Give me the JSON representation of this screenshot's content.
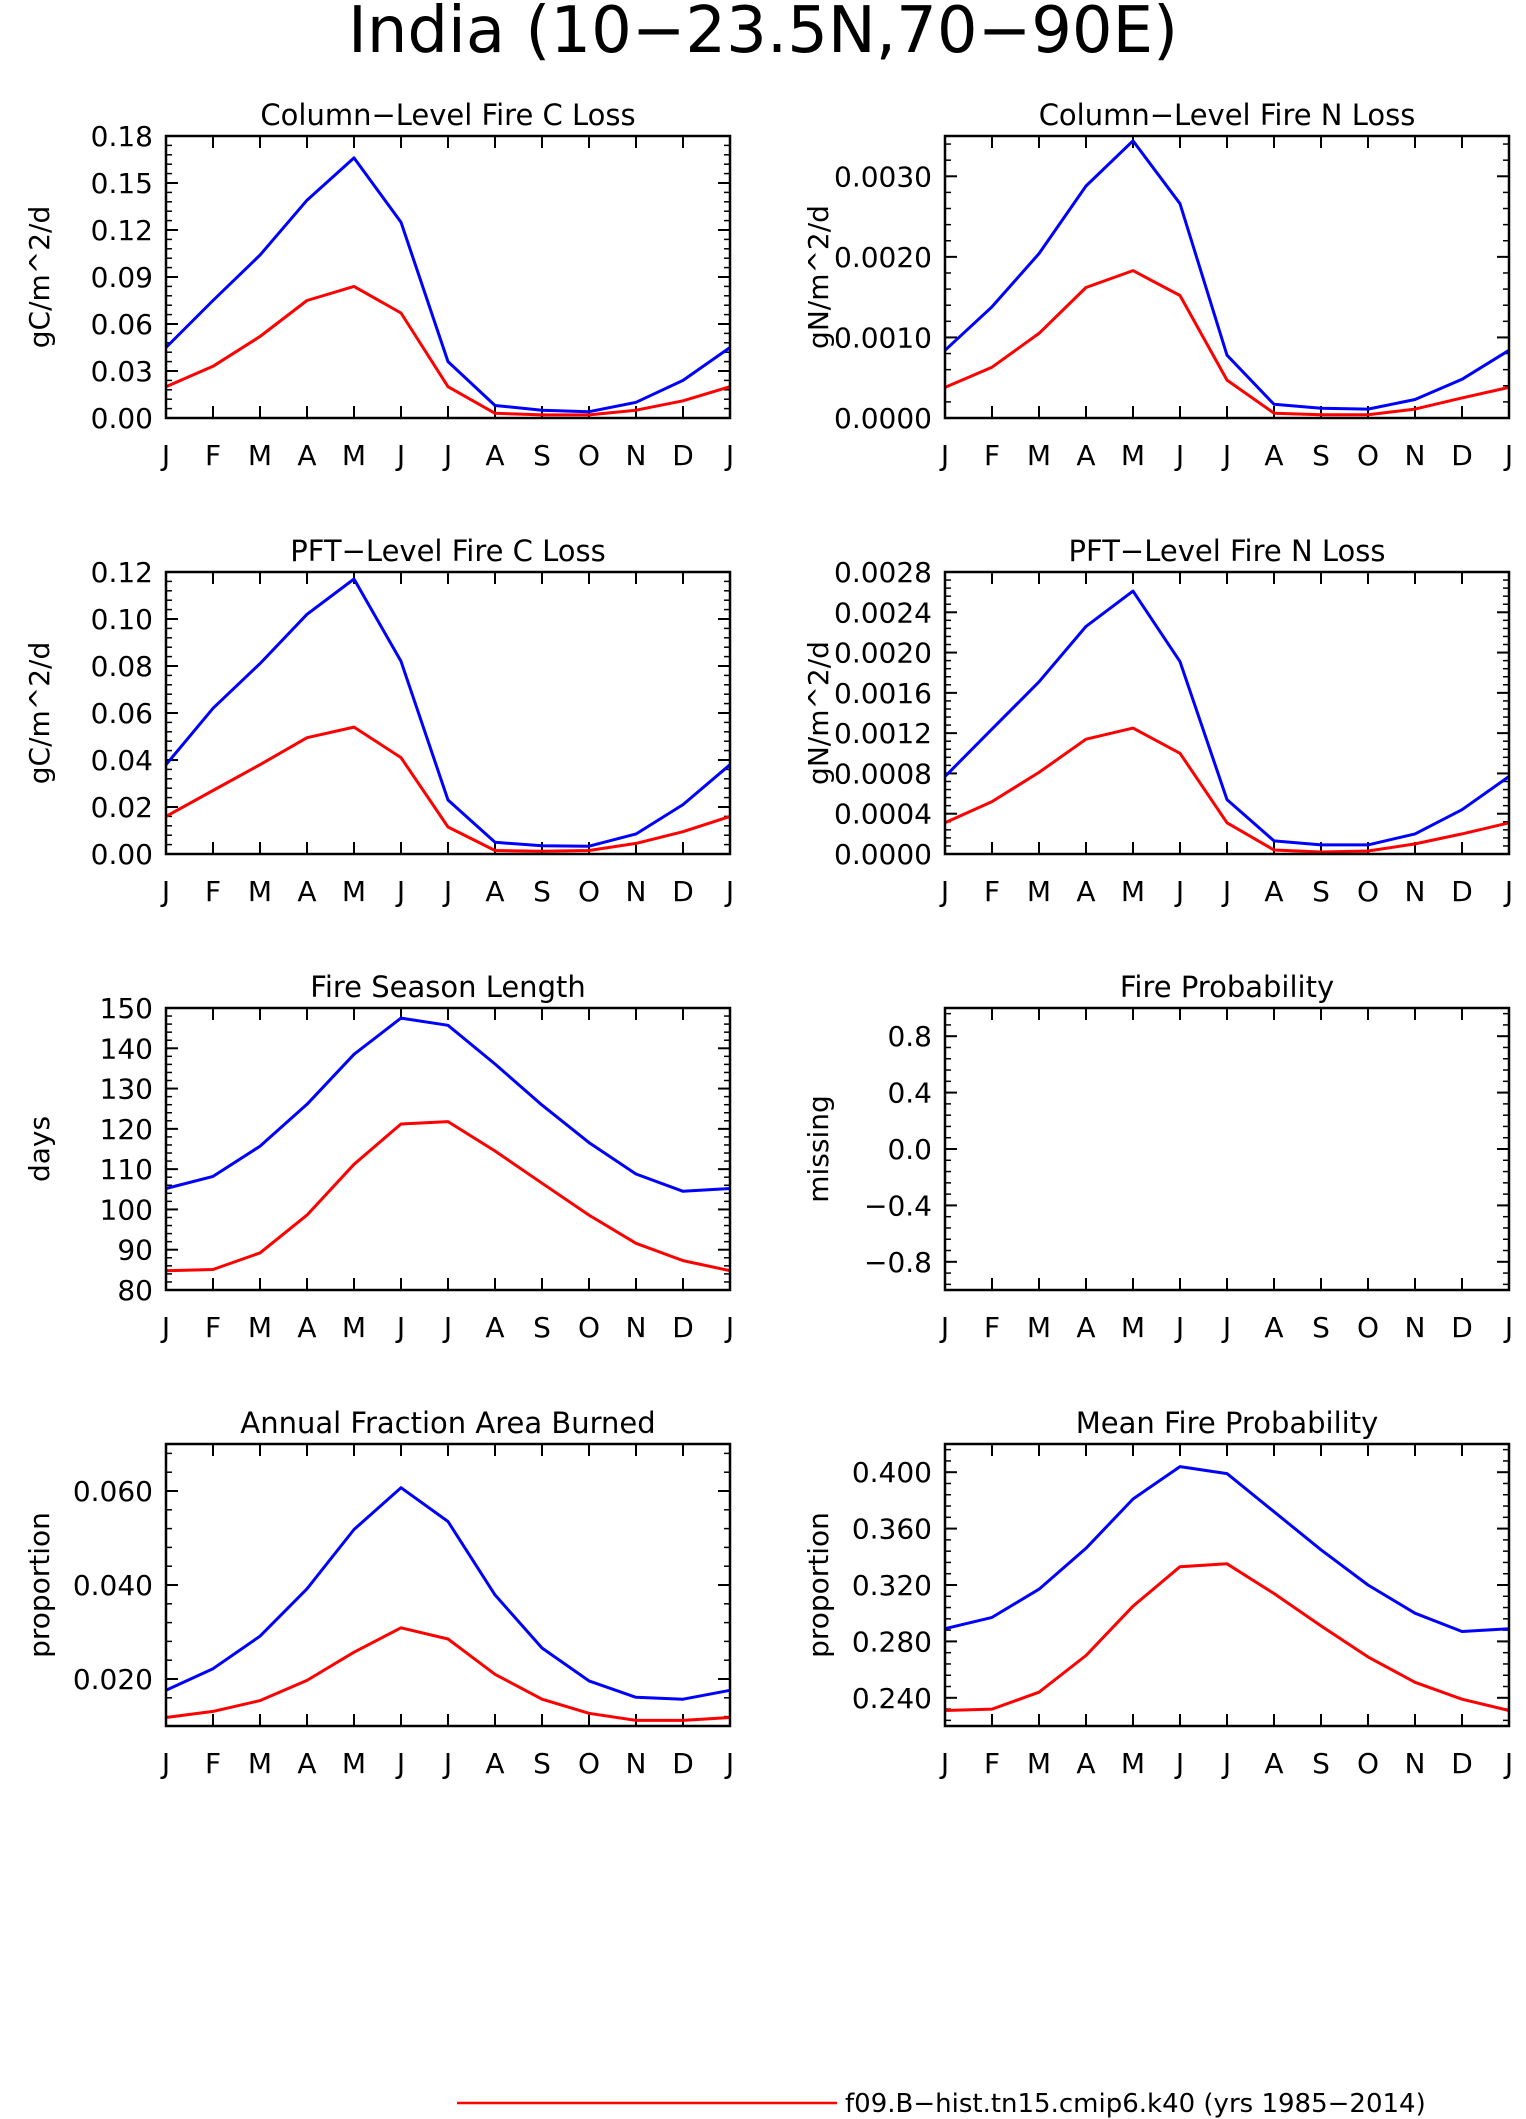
{
  "figure": {
    "title": "India (10−23.5N,70−90E)",
    "legend": [
      {
        "label": "f09.B−hist.tn15.cmip6.k40 (yrs 1985−2014)",
        "color": "#ff0000"
      }
    ],
    "colors": {
      "series_a": "#0000ff",
      "series_b": "#ff0000"
    }
  },
  "chart_data": [
    {
      "type": "line",
      "title": "Column−Level Fire C Loss",
      "ylabel": "gC/m^2/d",
      "x": [
        "J",
        "F",
        "M",
        "A",
        "M",
        "J",
        "J",
        "A",
        "S",
        "O",
        "N",
        "D",
        "J"
      ],
      "ylim": [
        0,
        0.18
      ],
      "yticks": [
        "0.00",
        "0.03",
        "0.06",
        "0.09",
        "0.12",
        "0.15",
        "0.18"
      ],
      "series": [
        {
          "color": "#0000ff",
          "values": [
            0.045,
            0.075,
            0.104,
            0.139,
            0.166,
            0.125,
            0.036,
            0.008,
            0.005,
            0.004,
            0.01,
            0.024,
            0.045
          ]
        },
        {
          "color": "#ff0000",
          "values": [
            0.02,
            0.033,
            0.052,
            0.075,
            0.084,
            0.067,
            0.02,
            0.003,
            0.002,
            0.002,
            0.005,
            0.011,
            0.02
          ]
        }
      ]
    },
    {
      "type": "line",
      "title": "Column−Level Fire N Loss",
      "ylabel": "gN/m^2/d",
      "x": [
        "J",
        "F",
        "M",
        "A",
        "M",
        "J",
        "J",
        "A",
        "S",
        "O",
        "N",
        "D",
        "J"
      ],
      "ylim": [
        0,
        0.0035
      ],
      "yticks": [
        "0.0000",
        "0.0010",
        "0.0020",
        "0.0030"
      ],
      "series": [
        {
          "color": "#0000ff",
          "values": [
            0.00084,
            0.00138,
            0.00204,
            0.00288,
            0.00344,
            0.00266,
            0.00078,
            0.00017,
            0.00012,
            0.00011,
            0.00023,
            0.00048,
            0.00084
          ]
        },
        {
          "color": "#ff0000",
          "values": [
            0.00038,
            0.00063,
            0.00105,
            0.00162,
            0.00183,
            0.00152,
            0.00047,
            6e-05,
            4e-05,
            4e-05,
            0.00011,
            0.00025,
            0.00038
          ]
        }
      ]
    },
    {
      "type": "line",
      "title": "PFT−Level Fire C Loss",
      "ylabel": "gC/m^2/d",
      "x": [
        "J",
        "F",
        "M",
        "A",
        "M",
        "J",
        "J",
        "A",
        "S",
        "O",
        "N",
        "D",
        "J"
      ],
      "ylim": [
        0,
        0.12
      ],
      "yticks": [
        "0.00",
        "0.02",
        "0.04",
        "0.06",
        "0.08",
        "0.10",
        "0.12"
      ],
      "series": [
        {
          "color": "#0000ff",
          "values": [
            0.038,
            0.062,
            0.081,
            0.102,
            0.117,
            0.082,
            0.023,
            0.005,
            0.0035,
            0.0033,
            0.0085,
            0.021,
            0.038
          ]
        },
        {
          "color": "#ff0000",
          "values": [
            0.016,
            0.027,
            0.038,
            0.0495,
            0.054,
            0.041,
            0.0115,
            0.0015,
            0.0012,
            0.0015,
            0.0045,
            0.0095,
            0.016
          ]
        }
      ]
    },
    {
      "type": "line",
      "title": "PFT−Level Fire N Loss",
      "ylabel": "gN/m^2/d",
      "x": [
        "J",
        "F",
        "M",
        "A",
        "M",
        "J",
        "J",
        "A",
        "S",
        "O",
        "N",
        "D",
        "J"
      ],
      "ylim": [
        0,
        0.0028
      ],
      "yticks": [
        "0.0000",
        "0.0004",
        "0.0008",
        "0.0012",
        "0.0016",
        "0.0020",
        "0.0024",
        "0.0028"
      ],
      "series": [
        {
          "color": "#0000ff",
          "values": [
            0.00077,
            0.00124,
            0.00171,
            0.00226,
            0.00261,
            0.00191,
            0.00054,
            0.00013,
            9e-05,
            9e-05,
            0.0002,
            0.00044,
            0.00077
          ]
        },
        {
          "color": "#ff0000",
          "values": [
            0.00031,
            0.00052,
            0.00081,
            0.00114,
            0.00125,
            0.001,
            0.00031,
            4e-05,
            2e-05,
            3e-05,
            0.0001,
            0.0002,
            0.00031
          ]
        }
      ]
    },
    {
      "type": "line",
      "title": "Fire Season Length",
      "ylabel": "days",
      "x": [
        "J",
        "F",
        "M",
        "A",
        "M",
        "J",
        "J",
        "A",
        "S",
        "O",
        "N",
        "D",
        "J"
      ],
      "ylim": [
        80,
        150
      ],
      "yticks": [
        "80",
        "90",
        "100",
        "110",
        "120",
        "130",
        "140",
        "150"
      ],
      "series": [
        {
          "color": "#0000ff",
          "values": [
            105.2,
            108.2,
            115.7,
            126.1,
            138.5,
            147.5,
            145.7,
            136.1,
            125.9,
            116.6,
            108.8,
            104.5,
            105.2
          ]
        },
        {
          "color": "#ff0000",
          "values": [
            84.8,
            85.1,
            89.2,
            98.6,
            111.2,
            121.2,
            121.8,
            114.5,
            106.5,
            98.6,
            91.6,
            87.3,
            84.8
          ]
        }
      ]
    },
    {
      "type": "line",
      "title": "Fire Probability",
      "ylabel": "missing",
      "x": [
        "J",
        "F",
        "M",
        "A",
        "M",
        "J",
        "J",
        "A",
        "S",
        "O",
        "N",
        "D",
        "J"
      ],
      "ylim": [
        -1,
        1
      ],
      "yticks": [
        "−0.8",
        "−0.4",
        "0.0",
        "0.4",
        "0.8"
      ],
      "series": []
    },
    {
      "type": "line",
      "title": "Annual Fraction Area Burned",
      "ylabel": "proportion",
      "x": [
        "J",
        "F",
        "M",
        "A",
        "M",
        "J",
        "J",
        "A",
        "S",
        "O",
        "N",
        "D",
        "J"
      ],
      "ylim": [
        0.01,
        0.07
      ],
      "yticks": [
        "0.020",
        "0.040",
        "0.060"
      ],
      "series": [
        {
          "color": "#0000ff",
          "values": [
            0.0176,
            0.0222,
            0.0291,
            0.0392,
            0.0518,
            0.0607,
            0.0535,
            0.0379,
            0.0266,
            0.0196,
            0.0161,
            0.0157,
            0.0176
          ]
        },
        {
          "color": "#ff0000",
          "values": [
            0.0118,
            0.0131,
            0.0154,
            0.0197,
            0.0257,
            0.0309,
            0.0285,
            0.021,
            0.0157,
            0.0127,
            0.0112,
            0.0112,
            0.0118
          ]
        }
      ]
    },
    {
      "type": "line",
      "title": "Mean Fire Probability",
      "ylabel": "proportion",
      "x": [
        "J",
        "F",
        "M",
        "A",
        "M",
        "J",
        "J",
        "A",
        "S",
        "O",
        "N",
        "D",
        "J"
      ],
      "ylim": [
        0.22,
        0.42
      ],
      "yticks": [
        "0.240",
        "0.280",
        "0.320",
        "0.360",
        "0.400"
      ],
      "series": [
        {
          "color": "#0000ff",
          "values": [
            0.289,
            0.297,
            0.317,
            0.346,
            0.381,
            0.404,
            0.399,
            0.372,
            0.345,
            0.32,
            0.3,
            0.287,
            0.289
          ]
        },
        {
          "color": "#ff0000",
          "values": [
            0.231,
            0.232,
            0.244,
            0.27,
            0.305,
            0.333,
            0.335,
            0.314,
            0.291,
            0.269,
            0.251,
            0.239,
            0.231
          ]
        }
      ]
    }
  ]
}
